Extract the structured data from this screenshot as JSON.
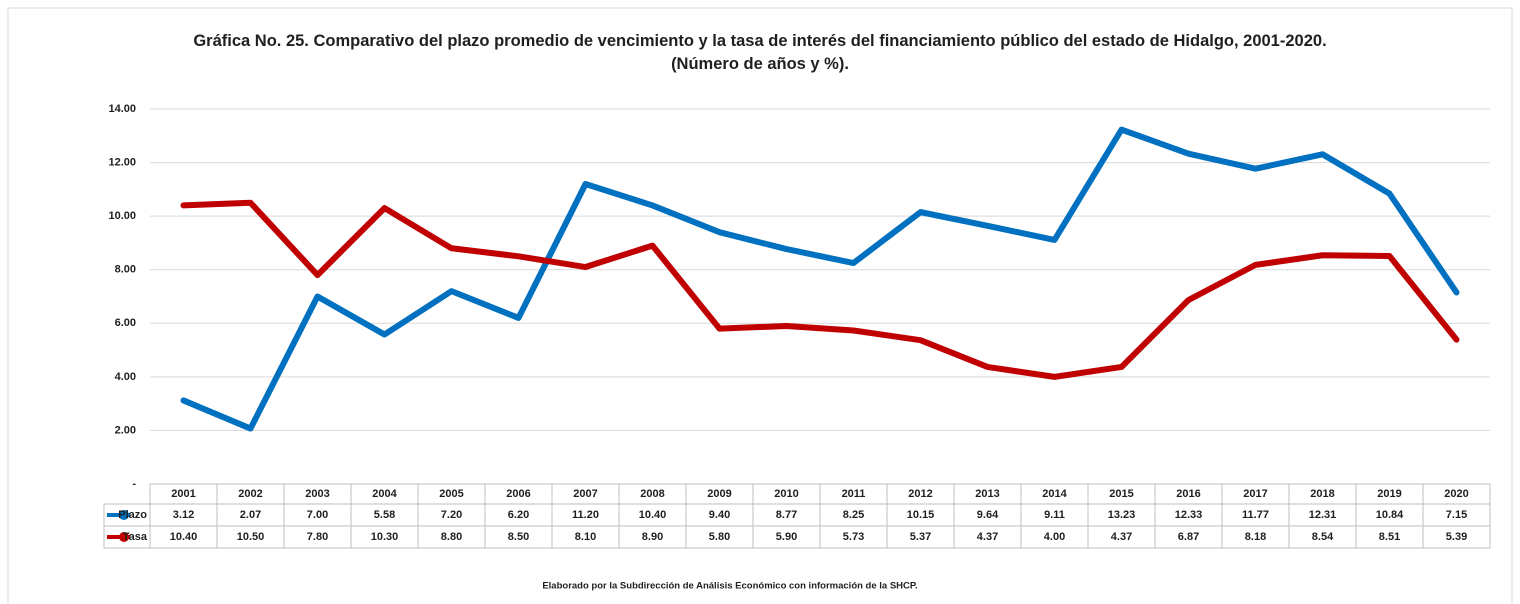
{
  "chart_data": {
    "type": "line",
    "title": "Gráfica No. 25. Comparativo del plazo promedio de vencimiento y la tasa de interés del financiamiento público del estado de Hidalgo, 2001-2020. (Número de años y %).",
    "categories": [
      "2001",
      "2002",
      "2003",
      "2004",
      "2005",
      "2006",
      "2007",
      "2008",
      "2009",
      "2010",
      "2011",
      "2012",
      "2013",
      "2014",
      "2015",
      "2016",
      "2017",
      "2018",
      "2019",
      "2020"
    ],
    "series": [
      {
        "name": "Plazo",
        "color": "#0070c0",
        "values": [
          3.12,
          2.07,
          7,
          5.58,
          7.2,
          6.2,
          11.2,
          10.4,
          9.4,
          8.77,
          8.25,
          10.15,
          9.64,
          9.11,
          13.23,
          12.33,
          11.77,
          12.31,
          10.84,
          7.15
        ],
        "value_labels": [
          "3.12",
          "2.07",
          "7.00",
          "5.58",
          "7.20",
          "6.20",
          "11.20",
          "10.40",
          "9.40",
          "8.77",
          "8.25",
          "10.15",
          "9.64",
          "9.11",
          "13.23",
          "12.33",
          "11.77",
          "12.31",
          "10.84",
          "7.15"
        ]
      },
      {
        "name": "Tasa",
        "color": "#c00000",
        "values": [
          10.4,
          10.5,
          7.8,
          10.3,
          8.8,
          8.5,
          8.1,
          8.9,
          5.8,
          5.9,
          5.73,
          5.37,
          4.37,
          4,
          4.37,
          6.87,
          8.18,
          8.54,
          8.51,
          5.39
        ],
        "value_labels": [
          "10.40",
          "10.50",
          "7.80",
          "10.30",
          "8.80",
          "8.50",
          "8.10",
          "8.90",
          "5.80",
          "5.90",
          "5.73",
          "5.37",
          "4.37",
          "4.00",
          "4.37",
          "6.87",
          "8.18",
          "8.54",
          "8.51",
          "5.39"
        ]
      }
    ],
    "ylim": [
      0,
      14
    ],
    "yticks": [
      {
        "value": 0,
        "label": "-"
      },
      {
        "value": 2,
        "label": "2.00"
      },
      {
        "value": 4,
        "label": "4.00"
      },
      {
        "value": 6,
        "label": "6.00"
      },
      {
        "value": 8,
        "label": "8.00"
      },
      {
        "value": 10,
        "label": "10.00"
      },
      {
        "value": 12,
        "label": "12.00"
      },
      {
        "value": 14,
        "label": "14.00"
      }
    ],
    "grid": true,
    "source": "Elaborado por la Subdirección de Análisis Económico con información de la SHCP."
  }
}
